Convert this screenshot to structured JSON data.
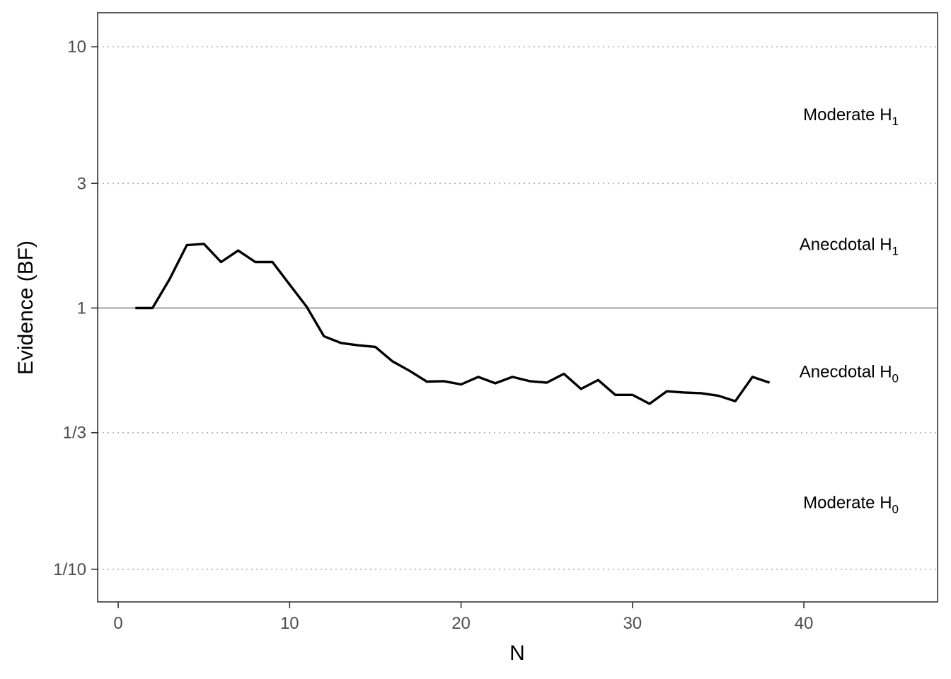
{
  "chart_data": {
    "type": "line",
    "xlabel": "N",
    "ylabel": "Evidence (BF)",
    "y_scale": "log",
    "xlim": [
      -1.2,
      47.8
    ],
    "ylim": [
      0.075,
      13.5
    ],
    "x_ticks": [
      {
        "value": 0,
        "label": "0"
      },
      {
        "value": 10,
        "label": "10"
      },
      {
        "value": 20,
        "label": "20"
      },
      {
        "value": 30,
        "label": "30"
      },
      {
        "value": 40,
        "label": "40"
      }
    ],
    "y_ticks": [
      {
        "value": 10,
        "label": "10"
      },
      {
        "value": 3,
        "label": "3"
      },
      {
        "value": 1,
        "label": "1"
      },
      {
        "value": 0.3333,
        "label": "1/3"
      },
      {
        "value": 0.1,
        "label": "1/10"
      }
    ],
    "dotted_gridlines": [
      10,
      3,
      0.3333,
      0.1
    ],
    "reference_line": 1,
    "region_labels": [
      {
        "base": "Moderate H",
        "sub": "1",
        "y": 5.5
      },
      {
        "base": "Anecdotal H",
        "sub": "1",
        "y": 1.75
      },
      {
        "base": "Anecdotal H",
        "sub": "0",
        "y": 0.57
      },
      {
        "base": "Moderate H",
        "sub": "0",
        "y": 0.18
      }
    ],
    "series": [
      {
        "color": "#000000",
        "x": [
          1,
          2,
          3,
          4,
          5,
          6,
          7,
          8,
          9,
          10,
          11,
          12,
          13,
          14,
          15,
          16,
          17,
          18,
          19,
          20,
          21,
          22,
          23,
          24,
          25,
          26,
          27,
          28,
          29,
          30,
          31,
          32,
          33,
          34,
          35,
          36,
          37,
          38
        ],
        "y": [
          1.0,
          1.0,
          1.29,
          1.74,
          1.76,
          1.5,
          1.66,
          1.5,
          1.5,
          1.23,
          1.01,
          0.78,
          0.735,
          0.72,
          0.71,
          0.625,
          0.575,
          0.523,
          0.525,
          0.51,
          0.545,
          0.515,
          0.545,
          0.525,
          0.518,
          0.56,
          0.49,
          0.53,
          0.465,
          0.465,
          0.43,
          0.48,
          0.475,
          0.472,
          0.462,
          0.44,
          0.545,
          0.518
        ]
      }
    ]
  }
}
